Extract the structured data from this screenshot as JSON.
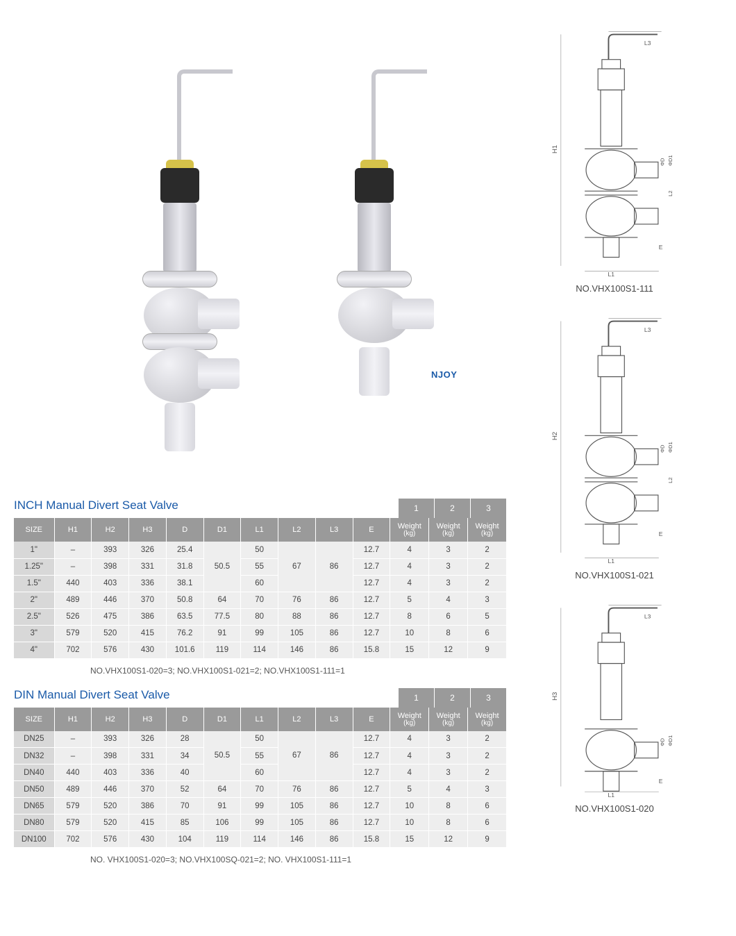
{
  "brand_text": "NJOY",
  "diagrams": [
    {
      "caption": "NO.VHX100S1-111",
      "height_label": "H1",
      "balls": 2
    },
    {
      "caption": "NO.VHX100S1-021",
      "height_label": "H2",
      "balls": 2
    },
    {
      "caption": "NO.VHX100S1-020",
      "height_label": "H3",
      "balls": 1
    }
  ],
  "diagram_labels": {
    "L1": "L1",
    "L2": "L2",
    "L3": "L3",
    "E": "E",
    "phiD": "ΦD",
    "phiD1": "ΦD1"
  },
  "tables": [
    {
      "title": "INCH Manual Divert Seat Valve",
      "caption": "NO.VHX100S1-020=3;  NO.VHX100S1-021=2;  NO.VHX100S1-111=1",
      "variant_labels": [
        "1",
        "2",
        "3"
      ],
      "columns": [
        "SIZE",
        "H1",
        "H2",
        "H3",
        "D",
        "D1",
        "L1",
        "L2",
        "L3",
        "E",
        "Weight (kg)",
        "Weight (kg)",
        "Weight (kg)"
      ],
      "merges": {
        "D1": {
          "start": 0,
          "span": 3,
          "value": "50.5"
        },
        "L2": {
          "start": 0,
          "span": 3,
          "value": "67"
        },
        "L3": {
          "start": 0,
          "span": 3,
          "value": "86"
        }
      },
      "rows": [
        {
          "SIZE": "1\"",
          "H1": "–",
          "H2": "393",
          "H3": "326",
          "D": "25.4",
          "D1": null,
          "L1": "50",
          "L2": null,
          "L3": null,
          "E": "12.7",
          "W1": "4",
          "W2": "3",
          "W3": "2"
        },
        {
          "SIZE": "1.25\"",
          "H1": "–",
          "H2": "398",
          "H3": "331",
          "D": "31.8",
          "D1": null,
          "L1": "55",
          "L2": null,
          "L3": null,
          "E": "12.7",
          "W1": "4",
          "W2": "3",
          "W3": "2"
        },
        {
          "SIZE": "1.5\"",
          "H1": "440",
          "H2": "403",
          "H3": "336",
          "D": "38.1",
          "D1": null,
          "L1": "60",
          "L2": null,
          "L3": null,
          "E": "12.7",
          "W1": "4",
          "W2": "3",
          "W3": "2"
        },
        {
          "SIZE": "2\"",
          "H1": "489",
          "H2": "446",
          "H3": "370",
          "D": "50.8",
          "D1": "64",
          "L1": "70",
          "L2": "76",
          "L3": "86",
          "E": "12.7",
          "W1": "5",
          "W2": "4",
          "W3": "3"
        },
        {
          "SIZE": "2.5\"",
          "H1": "526",
          "H2": "475",
          "H3": "386",
          "D": "63.5",
          "D1": "77.5",
          "L1": "80",
          "L2": "88",
          "L3": "86",
          "E": "12.7",
          "W1": "8",
          "W2": "6",
          "W3": "5"
        },
        {
          "SIZE": "3\"",
          "H1": "579",
          "H2": "520",
          "H3": "415",
          "D": "76.2",
          "D1": "91",
          "L1": "99",
          "L2": "105",
          "L3": "86",
          "E": "12.7",
          "W1": "10",
          "W2": "8",
          "W3": "6"
        },
        {
          "SIZE": "4\"",
          "H1": "702",
          "H2": "576",
          "H3": "430",
          "D": "101.6",
          "D1": "119",
          "L1": "114",
          "L2": "146",
          "L3": "86",
          "E": "15.8",
          "W1": "15",
          "W2": "12",
          "W3": "9"
        }
      ]
    },
    {
      "title": "DIN Manual Divert Seat Valve",
      "caption": "NO. VHX100S1-020=3;  NO.VHX100SQ-021=2;  NO. VHX100S1-111=1",
      "variant_labels": [
        "1",
        "2",
        "3"
      ],
      "columns": [
        "SIZE",
        "H1",
        "H2",
        "H3",
        "D",
        "D1",
        "L1",
        "L2",
        "L3",
        "E",
        "Weight (kg)",
        "Weight (kg)",
        "Weight (kg)"
      ],
      "merges": {
        "D1": {
          "start": 0,
          "span": 3,
          "value": "50.5"
        },
        "L2": {
          "start": 0,
          "span": 3,
          "value": "67"
        },
        "L3": {
          "start": 0,
          "span": 3,
          "value": "86"
        }
      },
      "rows": [
        {
          "SIZE": "DN25",
          "H1": "–",
          "H2": "393",
          "H3": "326",
          "D": "28",
          "D1": null,
          "L1": "50",
          "L2": null,
          "L3": null,
          "E": "12.7",
          "W1": "4",
          "W2": "3",
          "W3": "2"
        },
        {
          "SIZE": "DN32",
          "H1": "–",
          "H2": "398",
          "H3": "331",
          "D": "34",
          "D1": null,
          "L1": "55",
          "L2": null,
          "L3": null,
          "E": "12.7",
          "W1": "4",
          "W2": "3",
          "W3": "2"
        },
        {
          "SIZE": "DN40",
          "H1": "440",
          "H2": "403",
          "H3": "336",
          "D": "40",
          "D1": null,
          "L1": "60",
          "L2": null,
          "L3": null,
          "E": "12.7",
          "W1": "4",
          "W2": "3",
          "W3": "2"
        },
        {
          "SIZE": "DN50",
          "H1": "489",
          "H2": "446",
          "H3": "370",
          "D": "52",
          "D1": "64",
          "L1": "70",
          "L2": "76",
          "L3": "86",
          "E": "12.7",
          "W1": "5",
          "W2": "4",
          "W3": "3"
        },
        {
          "SIZE": "DN65",
          "H1": "579",
          "H2": "520",
          "H3": "386",
          "D": "70",
          "D1": "91",
          "L1": "99",
          "L2": "105",
          "L3": "86",
          "E": "12.7",
          "W1": "10",
          "W2": "8",
          "W3": "6"
        },
        {
          "SIZE": "DN80",
          "H1": "579",
          "H2": "520",
          "H3": "415",
          "D": "85",
          "D1": "106",
          "L1": "99",
          "L2": "105",
          "L3": "86",
          "E": "12.7",
          "W1": "10",
          "W2": "8",
          "W3": "6"
        },
        {
          "SIZE": "DN100",
          "H1": "702",
          "H2": "576",
          "H3": "430",
          "D": "104",
          "D1": "119",
          "L1": "114",
          "L2": "146",
          "L3": "86",
          "E": "15.8",
          "W1": "15",
          "W2": "12",
          "W3": "9"
        }
      ]
    }
  ],
  "colors": {
    "title": "#1a5aa8",
    "th_bg": "#9a9a9a",
    "th_fg": "#ffffff",
    "td_bg": "#eeeeee",
    "size_bg": "#d8d8d8",
    "text": "#444444"
  }
}
